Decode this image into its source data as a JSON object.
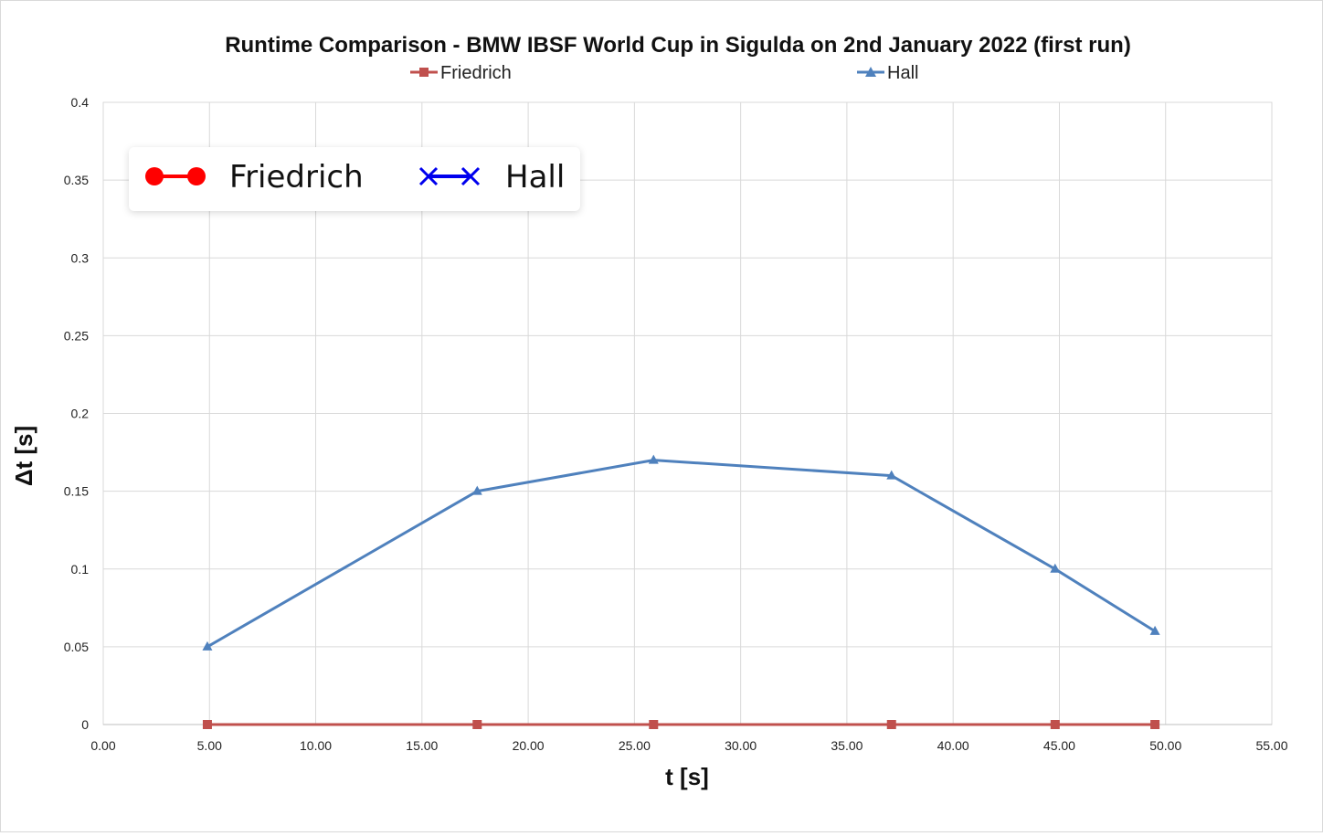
{
  "chart_data": {
    "type": "line",
    "title": "Runtime Comparison - BMW IBSF World Cup in Sigulda on 2nd January 2022 (first run)",
    "xlabel": "t [s]",
    "ylabel": "Δt [s]",
    "xlim": [
      0,
      55
    ],
    "ylim": [
      0,
      0.4
    ],
    "x_ticks": [
      "0.00",
      "5.00",
      "10.00",
      "15.00",
      "20.00",
      "25.00",
      "30.00",
      "35.00",
      "40.00",
      "45.00",
      "50.00",
      "55.00"
    ],
    "y_ticks": [
      "0",
      "0.05",
      "0.1",
      "0.15",
      "0.2",
      "0.25",
      "0.3",
      "0.35",
      "0.4"
    ],
    "grid": true,
    "legend_placement": "top",
    "series": [
      {
        "name": "Friedrich",
        "color": "#c0504d",
        "marker": "square",
        "x": [
          4.9,
          17.6,
          25.9,
          37.1,
          44.8,
          49.5
        ],
        "y": [
          0,
          0,
          0,
          0,
          0,
          0
        ]
      },
      {
        "name": "Hall",
        "color": "#4f81bd",
        "marker": "triangle",
        "x": [
          4.9,
          17.6,
          25.9,
          37.1,
          44.8,
          49.5
        ],
        "y": [
          0.05,
          0.15,
          0.17,
          0.16,
          0.1,
          0.06
        ]
      }
    ],
    "inset_legend": {
      "placement": "upper-left",
      "entries": [
        {
          "label": "Friedrich",
          "color": "#ff0000",
          "marker": "circle"
        },
        {
          "label": "Hall",
          "color": "#0000ee",
          "marker": "x"
        }
      ]
    }
  }
}
